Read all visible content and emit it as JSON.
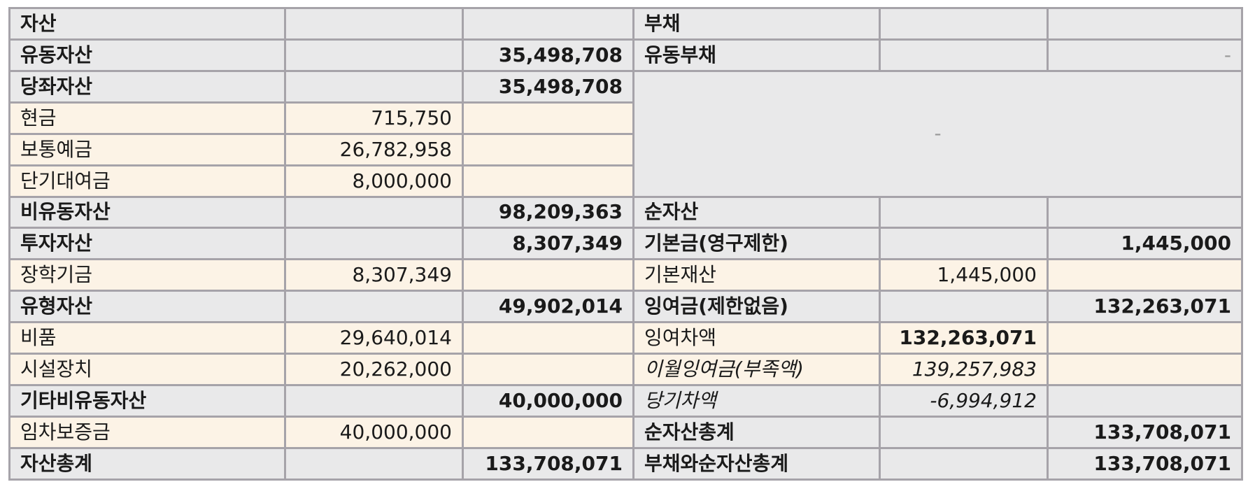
{
  "assets": {
    "header": "자산",
    "current_assets": {
      "label": "유동자산",
      "total": "35,498,708"
    },
    "quick_assets": {
      "label": "당좌자산",
      "total": "35,498,708"
    },
    "cash": {
      "label": "현금",
      "amount": "715,750"
    },
    "ordinary_deposit": {
      "label": "보통예금",
      "amount": "26,782,958"
    },
    "short_term_loan": {
      "label": "단기대여금",
      "amount": "8,000,000"
    },
    "non_current_assets": {
      "label": "비유동자산",
      "total": "98,209,363"
    },
    "investment_assets": {
      "label": "투자자산",
      "total": "8,307,349"
    },
    "scholarship_fund": {
      "label": "장학기금",
      "amount": "8,307,349"
    },
    "tangible_assets": {
      "label": "유형자산",
      "total": "49,902,014"
    },
    "supplies": {
      "label": "비품",
      "amount": "29,640,014"
    },
    "facilities": {
      "label": "시설장치",
      "amount": "20,262,000"
    },
    "other_non_current": {
      "label": "기타비유동자산",
      "total": "40,000,000"
    },
    "lease_deposit": {
      "label": "임차보증금",
      "amount": "40,000,000"
    },
    "total": {
      "label": "자산총계",
      "value": "133,708,071"
    }
  },
  "liabilities": {
    "header": "부채",
    "current_liabilities": {
      "label": "유동부채",
      "total": "-"
    },
    "blank_value": "-"
  },
  "net_assets": {
    "header": "순자산",
    "basic_fund": {
      "label": "기본금(영구제한)",
      "total": "1,445,000"
    },
    "basic_property": {
      "label": "기본재산",
      "amount": "1,445,000"
    },
    "surplus": {
      "label": "잉여금(제한없음)",
      "total": "132,263,071"
    },
    "surplus_balance": {
      "label": "잉여차액",
      "amount": "132,263,071"
    },
    "carried_over": {
      "label": "이월잉여금(부족액)",
      "amount": "139,257,983"
    },
    "current_balance": {
      "label": "당기차액",
      "amount": "-6,994,912"
    },
    "total": {
      "label": "순자산총계",
      "value": "133,708,071"
    },
    "grand_total": {
      "label": "부채와순자산총계",
      "value": "133,708,071"
    }
  }
}
